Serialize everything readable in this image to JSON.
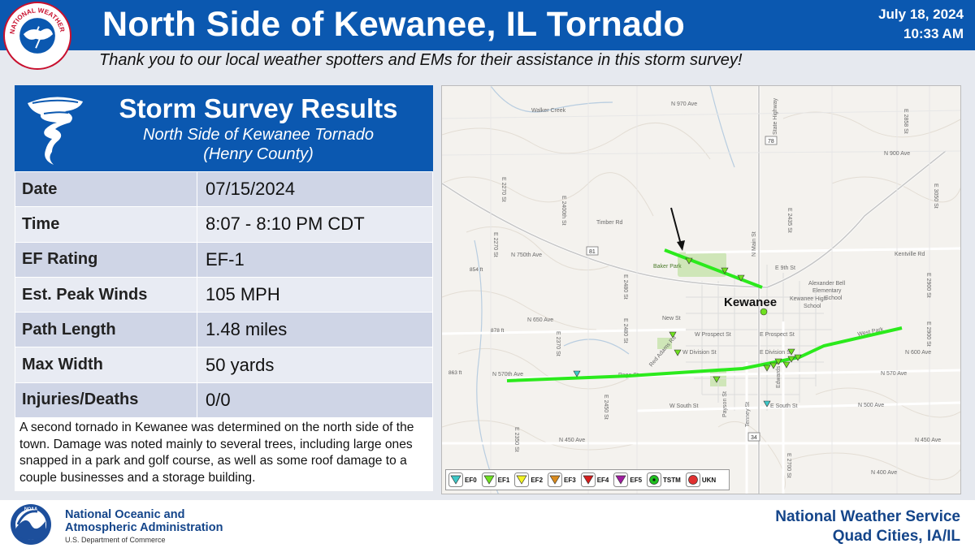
{
  "header": {
    "title": "North Side of Kewanee, IL Tornado",
    "date": "July 18, 2024",
    "time": "10:33 AM",
    "subtitle": "Thank you to our local weather spotters and EMs for their assistance in this storm survey!",
    "logo_text": "NATIONAL WEATHER SERVICE"
  },
  "survey": {
    "title": "Storm Survey Results",
    "subtitle_1": "North Side of Kewanee Tornado",
    "subtitle_2": "(Henry County)",
    "rows": [
      {
        "label": "Date",
        "value": "07/15/2024"
      },
      {
        "label": "Time",
        "value": "8:07 - 8:10 PM CDT"
      },
      {
        "label": "EF Rating",
        "value": "EF-1"
      },
      {
        "label": "Est. Peak Winds",
        "value": "105 MPH"
      },
      {
        "label": "Path Length",
        "value": "1.48 miles"
      },
      {
        "label": "Max Width",
        "value": "50 yards"
      },
      {
        "label": "Injuries/Deaths",
        "value": "0/0"
      }
    ],
    "notes": "A second tornado in Kewanee was determined on the north side of the town. Damage was noted mainly to several trees, including large ones snapped in a park and golf course, as well as some roof damage to a couple businesses and a storage building."
  },
  "map": {
    "town_label": "Kewanee",
    "road_labels": {
      "walker_creek": "Walker Creek",
      "n970": "N 970 Ave",
      "n900": "N 900 Ave",
      "timber": "Timber Rd",
      "n750": "N 750th Ave",
      "kentville": "Kentville Rd",
      "e9th": "E 9th St",
      "alexander": "Alexander Bell",
      "elementary": "Elementary",
      "school": "School",
      "kewanee_high": "Kewanee High",
      "school2": "School",
      "n650": "N 650 Ave",
      "new_st": "New St",
      "w_prospect": "W Prospect St",
      "e_prospect": "E Prospect St",
      "w_division": "W Division St",
      "e_division": "E Division St",
      "n600": "N 600 Ave",
      "n570th": "N 570th Ave",
      "page": "Page St",
      "n570": "N 570 Ave",
      "w_south": "W South St",
      "e_south": "E South St",
      "n500": "N 500 Ave",
      "n450w": "N 450 Ave",
      "n450e": "N 450 Ave",
      "n400": "N 400 Ave",
      "e2700": "E 2700 St",
      "e2350": "E 2350 St",
      "e2450": "E 2450 St",
      "e2480": "E 2480 St",
      "e2370": "E 2370 St",
      "e2270": "E 2270 St",
      "e2400th": "E 2400th St",
      "e2900": "E 2900 St",
      "e2858": "E 2858 St",
      "route78": "78",
      "route81": "81",
      "route34": "34",
      "elev854": "854 ft",
      "elev878": "878 ft",
      "elev863": "863 ft",
      "baker_park": "Baker Park",
      "n_main": "N Main St",
      "tenney": "Tenney St",
      "payson": "Payson St",
      "edwards": "Edwards St",
      "red_adams": "Red Adams Rd",
      "west_park": "West Park",
      "state_hwy": "State Highway",
      "e3050": "E 3050 St",
      "e2435": "E 2435 St"
    },
    "colors": {
      "track": "#2bea1c",
      "ef0": "#3cc7c7",
      "ef1": "#6fe020",
      "ef2": "#f3f323",
      "ef3": "#d98a1c",
      "ef4": "#d41c1c",
      "ef5": "#a01ca0",
      "tstm": "#1fbf1f",
      "ukn": "#e03030"
    }
  },
  "legend": [
    {
      "key": "ef0",
      "label": "EF0"
    },
    {
      "key": "ef1",
      "label": "EF1"
    },
    {
      "key": "ef2",
      "label": "EF2"
    },
    {
      "key": "ef3",
      "label": "EF3"
    },
    {
      "key": "ef4",
      "label": "EF4"
    },
    {
      "key": "ef5",
      "label": "EF5"
    },
    {
      "key": "tstm",
      "label": "TSTM"
    },
    {
      "key": "ukn",
      "label": "UKN"
    }
  ],
  "footer": {
    "noaa_line1": "National Oceanic and",
    "noaa_line2": "Atmospheric Administration",
    "noaa_dept": "U.S. Department of Commerce",
    "noaa_logo": "NOAA",
    "nws_name": "National Weather Service",
    "nws_office": "Quad Cities, IA/IL"
  }
}
